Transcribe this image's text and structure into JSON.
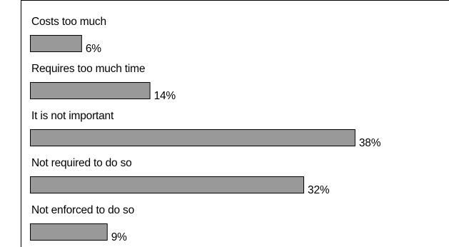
{
  "chart_data": {
    "type": "bar",
    "orientation": "horizontal",
    "categories": [
      "Costs too much",
      "Requires too much time",
      "It is not important",
      "Not required to do so",
      "Not enforced to do so"
    ],
    "values": [
      6,
      14,
      38,
      32,
      9
    ],
    "value_labels": [
      "6%",
      "14%",
      "38%",
      "32%",
      "9%"
    ],
    "bar_color": "#999999",
    "grid": false,
    "legend": "none"
  }
}
